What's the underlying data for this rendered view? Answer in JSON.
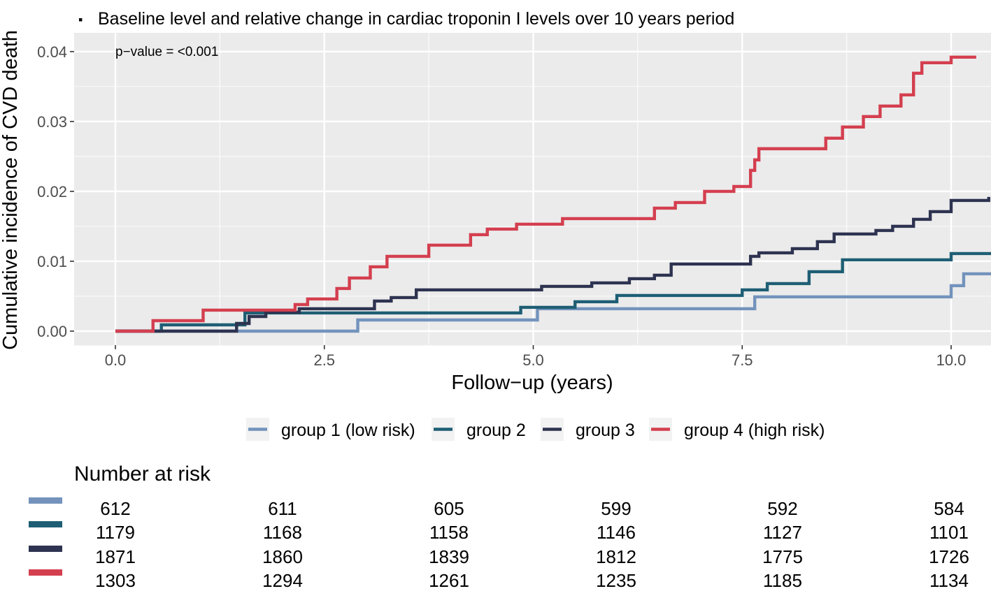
{
  "chart_data": {
    "type": "line",
    "step": true,
    "title": "Baseline level and relative change in cardiac troponin I levels over 10 years period",
    "title_bullet": "▪",
    "xlabel": "Follow−up (years)",
    "ylabel": "Cumulative incidence of CVD death",
    "xlim": [
      -0.5,
      10.5
    ],
    "ylim": [
      -0.002,
      0.0415
    ],
    "x_ticks": [
      0,
      2.5,
      5,
      7.5,
      10
    ],
    "x_tick_labels": [
      "0.0",
      "2.5",
      "5.0",
      "7.5",
      "10.0"
    ],
    "y_ticks": [
      0,
      0.01,
      0.02,
      0.03,
      0.04
    ],
    "y_tick_labels": [
      "0.00",
      "0.01",
      "0.02",
      "0.03",
      "0.04"
    ],
    "grid": true,
    "annotation": "p−value = <0.001",
    "legend_position": "bottom",
    "series": [
      {
        "name": "group 1 (low risk)",
        "color": "#7393bc",
        "x": [
          0,
          1.45,
          2.9,
          5.05,
          7.65,
          10.0,
          10.15,
          10.5
        ],
        "y": [
          0,
          0,
          0.0016,
          0.0032,
          0.0049,
          0.0065,
          0.0082,
          0.0082
        ]
      },
      {
        "name": "group 2",
        "color": "#1e5e74",
        "x": [
          0,
          0.55,
          1.55,
          4.85,
          5.5,
          6.0,
          7.5,
          7.8,
          8.3,
          8.7,
          10.0,
          10.5
        ],
        "y": [
          0,
          0.0009,
          0.0026,
          0.0034,
          0.0042,
          0.0051,
          0.0059,
          0.0068,
          0.0085,
          0.0102,
          0.0111,
          0.0119
        ]
      },
      {
        "name": "group 3",
        "color": "#2d3350",
        "x": [
          0,
          0.45,
          1.45,
          1.6,
          1.8,
          2.2,
          3.1,
          3.3,
          3.6,
          5.1,
          5.7,
          6.15,
          6.45,
          6.65,
          7.6,
          7.7,
          8.1,
          8.4,
          8.6,
          9.1,
          9.3,
          9.55,
          9.75,
          10.0,
          10.45
        ],
        "y": [
          0,
          0,
          0.0011,
          0.0021,
          0.0027,
          0.0032,
          0.0043,
          0.0048,
          0.0059,
          0.0064,
          0.0069,
          0.0075,
          0.008,
          0.0096,
          0.0107,
          0.0112,
          0.0118,
          0.0128,
          0.0139,
          0.0144,
          0.015,
          0.016,
          0.0171,
          0.0187,
          0.0192
        ]
      },
      {
        "name": "group 4 (high risk)",
        "color": "#d43f4f",
        "x": [
          0,
          0.45,
          1.05,
          2.15,
          2.3,
          2.65,
          2.8,
          3.05,
          3.25,
          3.75,
          4.25,
          4.45,
          4.8,
          5.35,
          6.45,
          6.7,
          7.05,
          7.4,
          7.6,
          7.65,
          7.7,
          8.5,
          8.7,
          8.95,
          9.15,
          9.4,
          9.55,
          9.65,
          10.0,
          10.3
        ],
        "y": [
          0,
          0.0015,
          0.003,
          0.0038,
          0.0046,
          0.0061,
          0.0076,
          0.0092,
          0.0107,
          0.0123,
          0.0138,
          0.0146,
          0.0153,
          0.0161,
          0.0176,
          0.0184,
          0.02,
          0.0207,
          0.023,
          0.0245,
          0.0261,
          0.0276,
          0.0292,
          0.0307,
          0.0322,
          0.0338,
          0.0369,
          0.0384,
          0.0392,
          0.0392
        ]
      }
    ],
    "risk_table": {
      "title": "Number at risk",
      "times": [
        0,
        2.5,
        5,
        7.5,
        10,
        12.5
      ],
      "rows": [
        {
          "group": "group 1 (low risk)",
          "color": "#7393bc",
          "values": [
            "612",
            "611",
            "605",
            "599",
            "592",
            "584"
          ]
        },
        {
          "group": "group 2",
          "color": "#1e5e74",
          "values": [
            "1179",
            "1168",
            "1158",
            "1146",
            "1127",
            "1101"
          ]
        },
        {
          "group": "group 3",
          "color": "#2d3350",
          "values": [
            "1871",
            "1860",
            "1839",
            "1812",
            "1775",
            "1726"
          ]
        },
        {
          "group": "group 4 (high risk)",
          "color": "#d43f4f",
          "values": [
            "1303",
            "1294",
            "1261",
            "1235",
            "1185",
            "1134"
          ]
        }
      ]
    }
  }
}
